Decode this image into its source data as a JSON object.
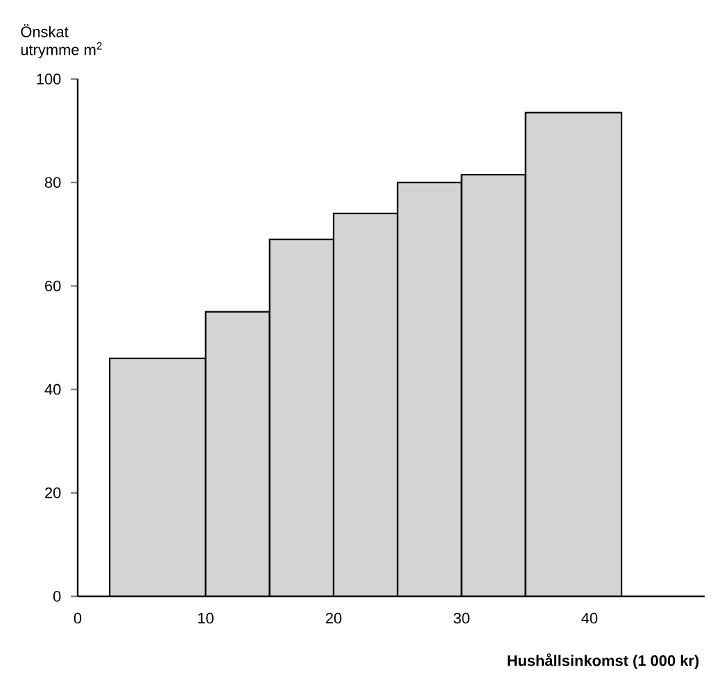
{
  "chart_data": {
    "type": "histogram",
    "ylabel": "Önskat\nutrymme m$^{2}$",
    "xlabel": "Hushållsinkomst (1 000 kr)",
    "bins": [
      2.5,
      10,
      15,
      20,
      25,
      30,
      35,
      42.5
    ],
    "values": [
      46,
      55,
      69,
      74,
      80,
      81.5,
      93.5
    ],
    "color": "#d4d4d4",
    "xlim": [
      0,
      49
    ],
    "ylim": [
      0,
      100
    ],
    "xticks": [
      0,
      10,
      20,
      30,
      40
    ],
    "yticks": [
      0,
      20,
      40,
      60,
      80,
      100
    ]
  }
}
